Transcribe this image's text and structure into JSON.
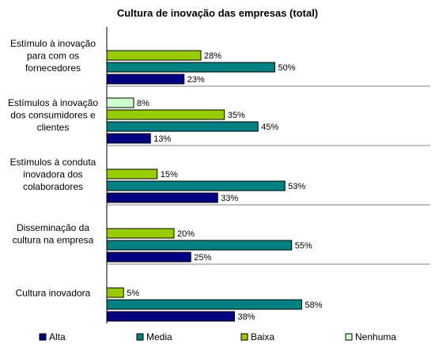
{
  "chart_data": {
    "type": "bar",
    "orientation": "horizontal",
    "title": "Cultura de inovação das empresas (total)",
    "xlim": [
      0,
      100
    ],
    "grid": false,
    "legend_position": "bottom",
    "categories": [
      [
        "Estímulo à inovação",
        "para com os",
        "fornecedores"
      ],
      [
        "Estímulos à inovação",
        "dos consumidores e",
        "clientes"
      ],
      [
        "Estímulos à conduta",
        "inovadora dos",
        "colaboradores"
      ],
      [
        "Disseminação da",
        "cultura na empresa"
      ],
      [
        "Cultura inovadora"
      ]
    ],
    "series": [
      {
        "name": "Alta",
        "color": "#000080",
        "values": [
          23,
          13,
          33,
          25,
          38
        ]
      },
      {
        "name": "Media",
        "color": "#008080",
        "values": [
          50,
          45,
          53,
          55,
          58
        ]
      },
      {
        "name": "Baixa",
        "color": "#99CC00",
        "values": [
          28,
          35,
          15,
          20,
          5
        ]
      },
      {
        "name": "Nenhuma",
        "color": "#CCFFCC",
        "values": [
          null,
          8,
          null,
          null,
          null
        ]
      }
    ],
    "value_suffix": "%"
  }
}
